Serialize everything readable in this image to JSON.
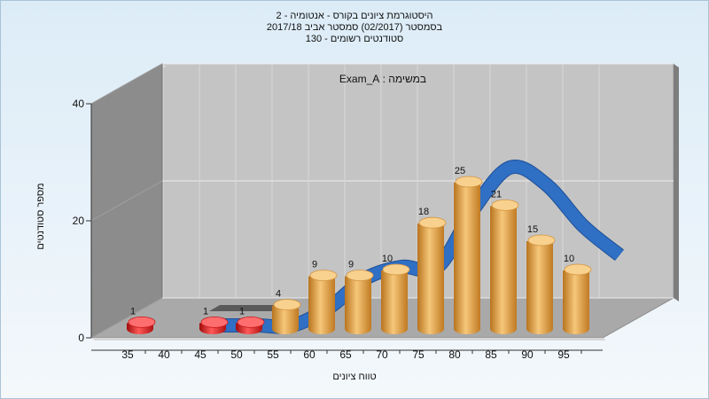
{
  "chart_data": {
    "type": "bar",
    "title_lines": [
      "היסטוגרמת ציונים בקורס - אנטומיה - 2",
      "בסמסטר  (02/2017)  סמסטר אביב 2017/18",
      "סטודנטים רשומים - 130"
    ],
    "annotation": "במשימה : Exam_A",
    "xlabel": "טווח ציונים",
    "ylabel": "מספר סטודנטים",
    "categories": [
      "35",
      "40",
      "45",
      "50",
      "55",
      "60",
      "65",
      "70",
      "75",
      "80",
      "85",
      "90",
      "95"
    ],
    "bars": [
      {
        "x": 35,
        "value": 1,
        "color": "#e02020"
      },
      {
        "x": 45,
        "value": 1,
        "color": "#e02020"
      },
      {
        "x": 50,
        "value": 1,
        "color": "#e02020"
      },
      {
        "x": 55,
        "value": 4,
        "color": "#e8a23c"
      },
      {
        "x": 60,
        "value": 9,
        "color": "#e8a23c"
      },
      {
        "x": 65,
        "value": 9,
        "color": "#e8a23c"
      },
      {
        "x": 70,
        "value": 10,
        "color": "#e8a23c"
      },
      {
        "x": 75,
        "value": 18,
        "color": "#e8a23c"
      },
      {
        "x": 80,
        "value": 25,
        "color": "#e8a23c"
      },
      {
        "x": 85,
        "value": 21,
        "color": "#e8a23c"
      },
      {
        "x": 90,
        "value": 15,
        "color": "#e8a23c"
      },
      {
        "x": 95,
        "value": 10,
        "color": "#e8a23c"
      }
    ],
    "trend": [
      {
        "x": 45,
        "y": 0
      },
      {
        "x": 50,
        "y": 0
      },
      {
        "x": 55,
        "y": 0
      },
      {
        "x": 60,
        "y": 3
      },
      {
        "x": 65,
        "y": 8
      },
      {
        "x": 70,
        "y": 10
      },
      {
        "x": 75,
        "y": 10
      },
      {
        "x": 80,
        "y": 20
      },
      {
        "x": 85,
        "y": 27
      },
      {
        "x": 90,
        "y": 24
      },
      {
        "x": 95,
        "y": 17
      },
      {
        "x": 100,
        "y": 12
      }
    ],
    "yticks": [
      0,
      20,
      40
    ],
    "ylim": [
      0,
      40
    ],
    "grid": true,
    "colors": {
      "low_bar": "#e02020",
      "bar": "#e8a23c",
      "trend": "#2f6fc4",
      "back_wall": "#c4c4c4",
      "side_wall": "#8c8c8c",
      "floor": "#a9a9a9"
    }
  }
}
